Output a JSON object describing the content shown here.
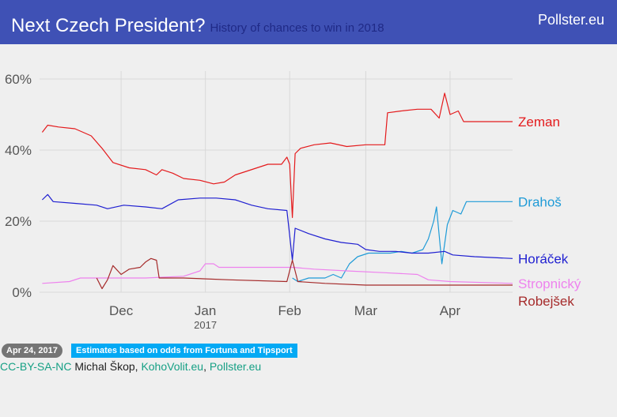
{
  "header": {
    "title": "Next Czech President?",
    "subtitle": "History of chances to win in 2018",
    "brand": "Pollster.eu"
  },
  "chart_data": {
    "type": "line",
    "x_ticks": [
      {
        "date": "2016-12-01",
        "label": "Dec",
        "sublabel": ""
      },
      {
        "date": "2017-01-01",
        "label": "Jan",
        "sublabel": "2017"
      },
      {
        "date": "2017-02-01",
        "label": "Feb",
        "sublabel": ""
      },
      {
        "date": "2017-03-01",
        "label": "Mar",
        "sublabel": ""
      },
      {
        "date": "2017-04-01",
        "label": "Apr",
        "sublabel": ""
      }
    ],
    "x_range": [
      "2016-11-01",
      "2017-04-24"
    ],
    "y_ticks": [
      {
        "value": 0,
        "label": "0%"
      },
      {
        "value": 20,
        "label": "20%"
      },
      {
        "value": 40,
        "label": "40%"
      },
      {
        "value": 60,
        "label": "60%"
      }
    ],
    "ylim": [
      0,
      60
    ],
    "grid": true,
    "legend": "direct labels at right",
    "series": [
      {
        "name": "Zeman",
        "color": "#e41a1c",
        "points": [
          [
            "2016-11-02",
            45
          ],
          [
            "2016-11-04",
            47
          ],
          [
            "2016-11-08",
            46.5
          ],
          [
            "2016-11-14",
            46
          ],
          [
            "2016-11-20",
            44
          ],
          [
            "2016-11-24",
            40.5
          ],
          [
            "2016-11-28",
            36.5
          ],
          [
            "2016-12-04",
            35
          ],
          [
            "2016-12-10",
            34.5
          ],
          [
            "2016-12-14",
            33
          ],
          [
            "2016-12-16",
            34.5
          ],
          [
            "2016-12-20",
            33.5
          ],
          [
            "2016-12-24",
            32
          ],
          [
            "2016-12-30",
            31.5
          ],
          [
            "2017-01-04",
            30.5
          ],
          [
            "2017-01-08",
            31
          ],
          [
            "2017-01-12",
            33
          ],
          [
            "2017-01-16",
            34
          ],
          [
            "2017-01-20",
            35
          ],
          [
            "2017-01-24",
            36
          ],
          [
            "2017-01-29",
            36
          ],
          [
            "2017-01-31",
            38
          ],
          [
            "2017-02-01",
            36
          ],
          [
            "2017-02-02",
            21
          ],
          [
            "2017-02-03",
            39
          ],
          [
            "2017-02-05",
            40.5
          ],
          [
            "2017-02-10",
            41.5
          ],
          [
            "2017-02-16",
            42
          ],
          [
            "2017-02-22",
            41
          ],
          [
            "2017-03-01",
            41.5
          ],
          [
            "2017-03-08",
            41.5
          ],
          [
            "2017-03-09",
            50.5
          ],
          [
            "2017-03-14",
            51
          ],
          [
            "2017-03-20",
            51.5
          ],
          [
            "2017-03-25",
            51.5
          ],
          [
            "2017-03-28",
            49
          ],
          [
            "2017-03-30",
            56
          ],
          [
            "2017-04-01",
            50
          ],
          [
            "2017-04-04",
            51
          ],
          [
            "2017-04-06",
            48
          ],
          [
            "2017-04-12",
            48
          ],
          [
            "2017-04-24",
            48
          ]
        ]
      },
      {
        "name": "Drahoš",
        "color": "#1f9bd7",
        "points": [
          [
            "2017-02-02",
            4
          ],
          [
            "2017-02-04",
            3
          ],
          [
            "2017-02-08",
            4
          ],
          [
            "2017-02-14",
            4
          ],
          [
            "2017-02-17",
            5
          ],
          [
            "2017-02-20",
            4
          ],
          [
            "2017-02-23",
            8
          ],
          [
            "2017-02-26",
            10
          ],
          [
            "2017-03-02",
            11
          ],
          [
            "2017-03-10",
            11
          ],
          [
            "2017-03-14",
            11.5
          ],
          [
            "2017-03-18",
            11
          ],
          [
            "2017-03-22",
            12
          ],
          [
            "2017-03-24",
            15
          ],
          [
            "2017-03-26",
            20
          ],
          [
            "2017-03-27",
            24
          ],
          [
            "2017-03-29",
            8
          ],
          [
            "2017-03-31",
            19
          ],
          [
            "2017-04-02",
            23
          ],
          [
            "2017-04-05",
            22
          ],
          [
            "2017-04-07",
            25.5
          ],
          [
            "2017-04-12",
            25.5
          ],
          [
            "2017-04-24",
            25.5
          ]
        ]
      },
      {
        "name": "Horáček",
        "color": "#1f1fd1",
        "points": [
          [
            "2016-11-02",
            26
          ],
          [
            "2016-11-04",
            27.5
          ],
          [
            "2016-11-06",
            25.5
          ],
          [
            "2016-11-14",
            25
          ],
          [
            "2016-11-22",
            24.5
          ],
          [
            "2016-11-26",
            23.5
          ],
          [
            "2016-12-02",
            24.5
          ],
          [
            "2016-12-10",
            24
          ],
          [
            "2016-12-16",
            23.5
          ],
          [
            "2016-12-22",
            26
          ],
          [
            "2016-12-30",
            26.5
          ],
          [
            "2017-01-05",
            26.5
          ],
          [
            "2017-01-12",
            26
          ],
          [
            "2017-01-18",
            24.5
          ],
          [
            "2017-01-24",
            23.5
          ],
          [
            "2017-01-31",
            23
          ],
          [
            "2017-02-01",
            16
          ],
          [
            "2017-02-02",
            9
          ],
          [
            "2017-02-03",
            18
          ],
          [
            "2017-02-08",
            16.5
          ],
          [
            "2017-02-14",
            15
          ],
          [
            "2017-02-20",
            14
          ],
          [
            "2017-02-26",
            13.5
          ],
          [
            "2017-03-01",
            12
          ],
          [
            "2017-03-06",
            11.5
          ],
          [
            "2017-03-12",
            11.5
          ],
          [
            "2017-03-18",
            11
          ],
          [
            "2017-03-24",
            11
          ],
          [
            "2017-03-30",
            11.5
          ],
          [
            "2017-04-02",
            10.5
          ],
          [
            "2017-04-10",
            10
          ],
          [
            "2017-04-24",
            9.5
          ]
        ]
      },
      {
        "name": "Stropnický",
        "color": "#ee82ee",
        "points": [
          [
            "2016-11-02",
            2.5
          ],
          [
            "2016-11-12",
            3
          ],
          [
            "2016-11-16",
            4
          ],
          [
            "2016-11-28",
            4
          ],
          [
            "2016-12-10",
            4
          ],
          [
            "2016-12-24",
            4.5
          ],
          [
            "2016-12-30",
            6
          ],
          [
            "2017-01-01",
            8
          ],
          [
            "2017-01-04",
            8
          ],
          [
            "2017-01-06",
            7
          ],
          [
            "2017-01-20",
            7
          ],
          [
            "2017-01-31",
            7
          ],
          [
            "2017-02-02",
            7
          ],
          [
            "2017-02-10",
            6.5
          ],
          [
            "2017-02-22",
            6
          ],
          [
            "2017-03-08",
            5.5
          ],
          [
            "2017-03-20",
            5
          ],
          [
            "2017-03-24",
            3.5
          ],
          [
            "2017-04-01",
            3
          ],
          [
            "2017-04-24",
            2.5
          ]
        ]
      },
      {
        "name": "Robejšek",
        "color": "#a52a2a",
        "points": [
          [
            "2016-11-22",
            4
          ],
          [
            "2016-11-24",
            1
          ],
          [
            "2016-11-26",
            3.5
          ],
          [
            "2016-11-28",
            7.5
          ],
          [
            "2016-12-01",
            5
          ],
          [
            "2016-12-04",
            6.5
          ],
          [
            "2016-12-08",
            7
          ],
          [
            "2016-12-10",
            8.5
          ],
          [
            "2016-12-12",
            9.5
          ],
          [
            "2016-12-14",
            9
          ],
          [
            "2016-12-15",
            4
          ],
          [
            "2016-12-24",
            4
          ],
          [
            "2017-01-10",
            3.5
          ],
          [
            "2017-01-31",
            3
          ],
          [
            "2017-02-02",
            9
          ],
          [
            "2017-02-04",
            3
          ],
          [
            "2017-02-14",
            2.5
          ],
          [
            "2017-03-01",
            2
          ],
          [
            "2017-03-24",
            2
          ],
          [
            "2017-04-24",
            2
          ]
        ]
      }
    ]
  },
  "footer": {
    "date_badge": "Apr 24, 2017",
    "source_badge": "Estimates based on odds from Fortuna and Tipsport",
    "license": "CC-BY-SA-NC",
    "author": " Michal Škop, ",
    "link1": "KohoVolit.eu",
    "sep": ", ",
    "link2": "Pollster.eu"
  }
}
